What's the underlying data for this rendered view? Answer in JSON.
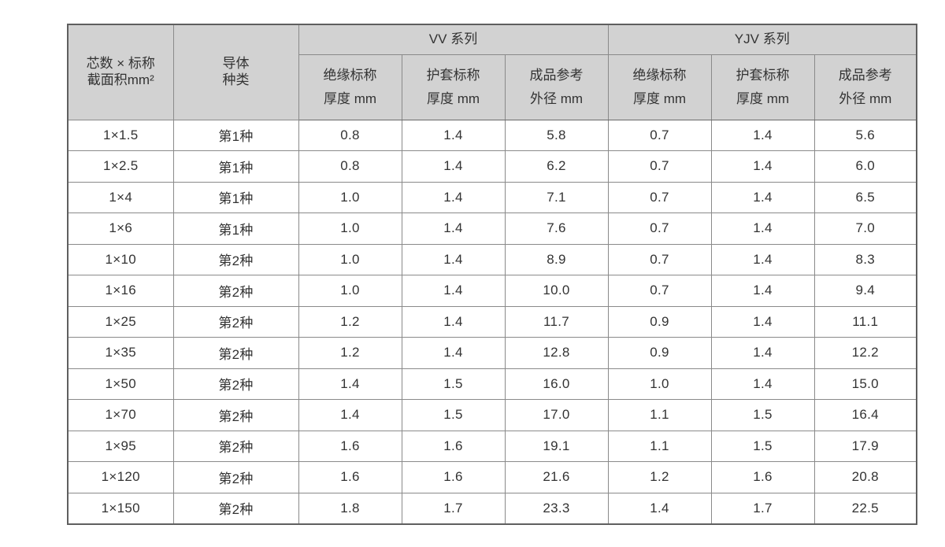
{
  "colors": {
    "header_bg": "#d2d2d2",
    "border": "#8a8a8a",
    "outer_border": "#5f5f5f",
    "text": "#333333"
  },
  "table": {
    "header": {
      "col_core": "芯数 × 标称\n截面积mm²",
      "col_conductor": "导体\n种类",
      "groups": [
        {
          "label": "VV 系列",
          "columns": [
            "绝缘标称\n厚度 mm",
            "护套标称\n厚度 mm",
            "成品参考\n外径 mm"
          ]
        },
        {
          "label": "YJV 系列",
          "columns": [
            "绝缘标称\n厚度 mm",
            "护套标称\n厚度 mm",
            "成品参考\n外径 mm"
          ]
        }
      ]
    },
    "rows": [
      {
        "spec": "1×1.5",
        "conductor": "第1种",
        "vv": [
          "0.8",
          "1.4",
          "5.8"
        ],
        "yjv": [
          "0.7",
          "1.4",
          "5.6"
        ]
      },
      {
        "spec": "1×2.5",
        "conductor": "第1种",
        "vv": [
          "0.8",
          "1.4",
          "6.2"
        ],
        "yjv": [
          "0.7",
          "1.4",
          "6.0"
        ]
      },
      {
        "spec": "1×4",
        "conductor": "第1种",
        "vv": [
          "1.0",
          "1.4",
          "7.1"
        ],
        "yjv": [
          "0.7",
          "1.4",
          "6.5"
        ]
      },
      {
        "spec": "1×6",
        "conductor": "第1种",
        "vv": [
          "1.0",
          "1.4",
          "7.6"
        ],
        "yjv": [
          "0.7",
          "1.4",
          "7.0"
        ]
      },
      {
        "spec": "1×10",
        "conductor": "第2种",
        "vv": [
          "1.0",
          "1.4",
          "8.9"
        ],
        "yjv": [
          "0.7",
          "1.4",
          "8.3"
        ]
      },
      {
        "spec": "1×16",
        "conductor": "第2种",
        "vv": [
          "1.0",
          "1.4",
          "10.0"
        ],
        "yjv": [
          "0.7",
          "1.4",
          "9.4"
        ]
      },
      {
        "spec": "1×25",
        "conductor": "第2种",
        "vv": [
          "1.2",
          "1.4",
          "11.7"
        ],
        "yjv": [
          "0.9",
          "1.4",
          "11.1"
        ]
      },
      {
        "spec": "1×35",
        "conductor": "第2种",
        "vv": [
          "1.2",
          "1.4",
          "12.8"
        ],
        "yjv": [
          "0.9",
          "1.4",
          "12.2"
        ]
      },
      {
        "spec": "1×50",
        "conductor": "第2种",
        "vv": [
          "1.4",
          "1.5",
          "16.0"
        ],
        "yjv": [
          "1.0",
          "1.4",
          "15.0"
        ]
      },
      {
        "spec": "1×70",
        "conductor": "第2种",
        "vv": [
          "1.4",
          "1.5",
          "17.0"
        ],
        "yjv": [
          "1.1",
          "1.5",
          "16.4"
        ]
      },
      {
        "spec": "1×95",
        "conductor": "第2种",
        "vv": [
          "1.6",
          "1.6",
          "19.1"
        ],
        "yjv": [
          "1.1",
          "1.5",
          "17.9"
        ]
      },
      {
        "spec": "1×120",
        "conductor": "第2种",
        "vv": [
          "1.6",
          "1.6",
          "21.6"
        ],
        "yjv": [
          "1.2",
          "1.6",
          "20.8"
        ]
      },
      {
        "spec": "1×150",
        "conductor": "第2种",
        "vv": [
          "1.8",
          "1.7",
          "23.3"
        ],
        "yjv": [
          "1.4",
          "1.7",
          "22.5"
        ]
      }
    ]
  }
}
